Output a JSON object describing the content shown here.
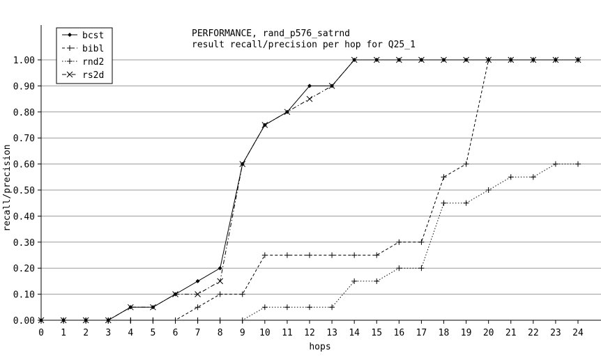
{
  "chart_data": {
    "type": "line",
    "title": "PERFORMANCE, rand_p576_satrnd",
    "subtitle": "result recall/precision per hop for Q25_1",
    "xlabel": "hops",
    "ylabel": "recall/precision",
    "xlim": [
      0,
      24
    ],
    "ylim": [
      0,
      1.0
    ],
    "x_ticks": [
      "0",
      "1",
      "2",
      "3",
      "4",
      "5",
      "6",
      "7",
      "8",
      "9",
      "10",
      "11",
      "12",
      "13",
      "14",
      "15",
      "16",
      "17",
      "18",
      "19",
      "20",
      "21",
      "22",
      "23",
      "24"
    ],
    "y_ticks": [
      "0.00",
      "0.10",
      "0.20",
      "0.30",
      "0.40",
      "0.50",
      "0.60",
      "0.70",
      "0.80",
      "0.90",
      "1.00"
    ],
    "grid": "horizontal",
    "legend_position": "top-left",
    "series": [
      {
        "name": "bcst",
        "marker": "diamond",
        "dash": "solid",
        "x": [
          0,
          1,
          2,
          3,
          4,
          5,
          6,
          7,
          8,
          9,
          10,
          11,
          12,
          13,
          14,
          15,
          16,
          17,
          18,
          19,
          20,
          21,
          22,
          23,
          24
        ],
        "y": [
          0,
          0,
          0,
          0,
          0.05,
          0.05,
          0.1,
          0.15,
          0.2,
          0.6,
          0.75,
          0.8,
          0.9,
          0.9,
          1.0,
          1.0,
          1.0,
          1.0,
          1.0,
          1.0,
          1.0,
          1.0,
          1.0,
          1.0,
          1.0
        ]
      },
      {
        "name": "bibl",
        "marker": "plus",
        "dash": "dashed",
        "x": [
          0,
          1,
          2,
          3,
          4,
          5,
          6,
          7,
          8,
          9,
          10,
          11,
          12,
          13,
          14,
          15,
          16,
          17,
          18,
          19,
          20,
          21,
          22,
          23,
          24
        ],
        "y": [
          0,
          0,
          0,
          0,
          0,
          0,
          0,
          0.05,
          0.1,
          0.1,
          0.25,
          0.25,
          0.25,
          0.25,
          0.25,
          0.25,
          0.3,
          0.3,
          0.55,
          0.6,
          1.0,
          1.0,
          1.0,
          1.0,
          1.0
        ]
      },
      {
        "name": "rnd2",
        "marker": "plus",
        "dash": "dotted",
        "x": [
          0,
          1,
          2,
          3,
          4,
          5,
          6,
          7,
          8,
          9,
          10,
          11,
          12,
          13,
          14,
          15,
          16,
          17,
          18,
          19,
          20,
          21,
          22,
          23,
          24
        ],
        "y": [
          0,
          0,
          0,
          0,
          0,
          0,
          0,
          0,
          0,
          0,
          0.05,
          0.05,
          0.05,
          0.05,
          0.15,
          0.15,
          0.2,
          0.2,
          0.45,
          0.45,
          0.5,
          0.55,
          0.55,
          0.6,
          0.6
        ]
      },
      {
        "name": "rs2d",
        "marker": "cross",
        "dash": "dashdot",
        "x": [
          0,
          1,
          2,
          3,
          4,
          5,
          6,
          7,
          8,
          9,
          10,
          11,
          12,
          13,
          14,
          15,
          16,
          17,
          18,
          19,
          20,
          21,
          22,
          23,
          24
        ],
        "y": [
          0,
          0,
          0,
          0,
          0.05,
          0.05,
          0.1,
          0.1,
          0.15,
          0.6,
          0.75,
          0.8,
          0.85,
          0.9,
          1.0,
          1.0,
          1.0,
          1.0,
          1.0,
          1.0,
          1.0,
          1.0,
          1.0,
          1.0,
          1.0
        ]
      }
    ]
  }
}
